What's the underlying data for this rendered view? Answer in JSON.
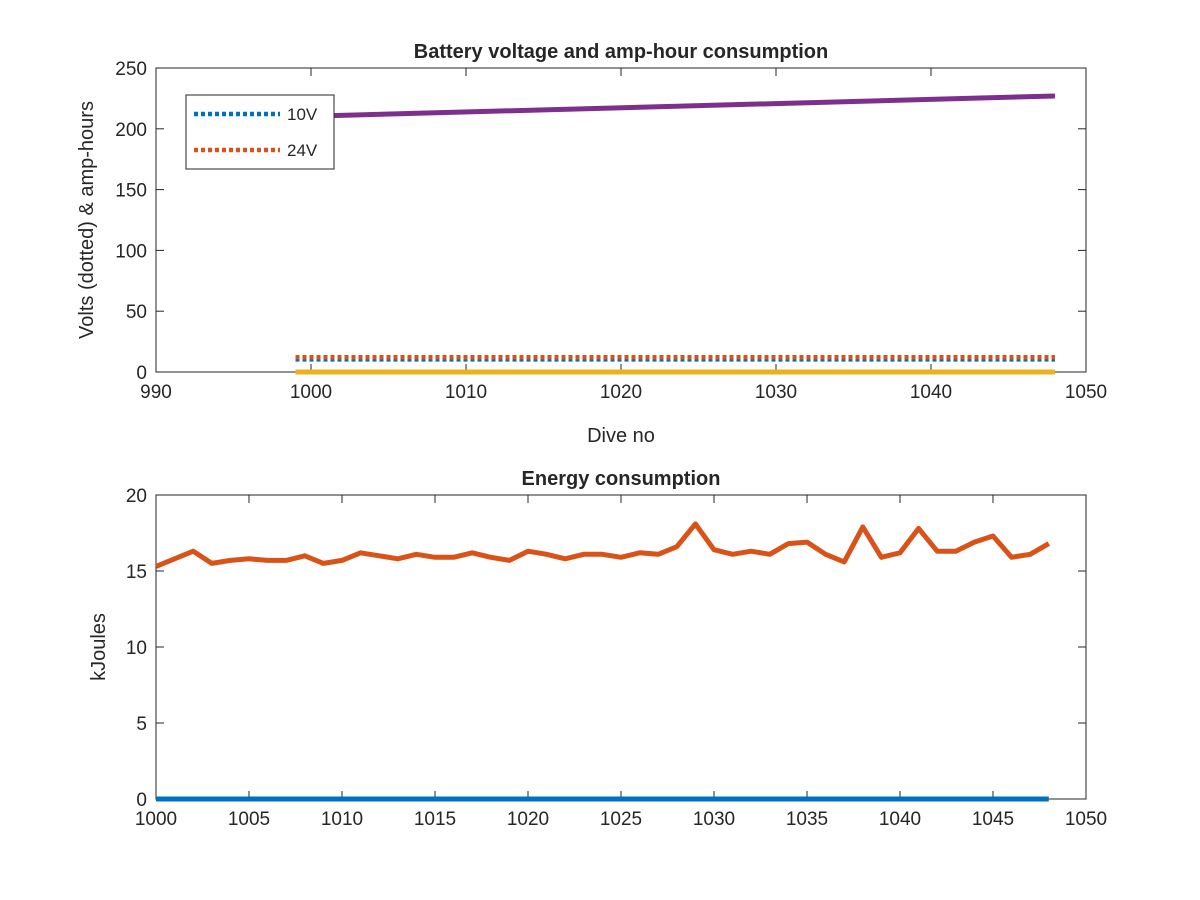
{
  "chart_data": [
    {
      "type": "line",
      "title": "Battery voltage and amp-hour consumption",
      "xlabel": "Dive no",
      "ylabel": "Volts (dotted) & amp-hours",
      "xlim": [
        990,
        1050
      ],
      "ylim": [
        0,
        250
      ],
      "xticks": [
        990,
        1000,
        1010,
        1020,
        1030,
        1040,
        1050
      ],
      "yticks": [
        0,
        50,
        100,
        150,
        200,
        250
      ],
      "grid": false,
      "legend_position": "top-left",
      "series": [
        {
          "name": "10V",
          "style": "dotted",
          "color": "#0072BD",
          "x": [
            999,
            1048
          ],
          "y": [
            10.4,
            10.4
          ],
          "in_legend": true
        },
        {
          "name": "24V",
          "style": "dotted",
          "color": "#D95319",
          "x": [
            999,
            1048
          ],
          "y": [
            12.2,
            12.2
          ],
          "in_legend": true
        },
        {
          "style": "solid",
          "color": "#EDB120",
          "x": [
            999,
            1048
          ],
          "y": [
            0,
            0
          ],
          "in_legend": false
        },
        {
          "style": "solid",
          "color": "#7E2F8E",
          "x": [
            999,
            1048
          ],
          "y": [
            210,
            227
          ],
          "in_legend": false
        }
      ]
    },
    {
      "type": "line",
      "title": "Energy consumption",
      "xlabel": "",
      "ylabel": "kJoules",
      "xlim": [
        1000,
        1050
      ],
      "ylim": [
        0,
        20
      ],
      "xticks": [
        1000,
        1005,
        1010,
        1015,
        1020,
        1025,
        1030,
        1035,
        1040,
        1045,
        1050
      ],
      "yticks": [
        0,
        5,
        10,
        15,
        20
      ],
      "grid": false,
      "series": [
        {
          "style": "solid",
          "color": "#0072BD",
          "x": [
            1000,
            1048
          ],
          "y": [
            0,
            0
          ]
        },
        {
          "style": "solid",
          "color": "#D95319",
          "x": [
            1000,
            1001,
            1002,
            1003,
            1004,
            1005,
            1006,
            1007,
            1008,
            1009,
            1010,
            1011,
            1012,
            1013,
            1014,
            1015,
            1016,
            1017,
            1018,
            1019,
            1020,
            1021,
            1022,
            1023,
            1024,
            1025,
            1026,
            1027,
            1028,
            1029,
            1030,
            1031,
            1032,
            1033,
            1034,
            1035,
            1036,
            1037,
            1038,
            1039,
            1040,
            1041,
            1042,
            1043,
            1044,
            1045,
            1046,
            1047,
            1048
          ],
          "y": [
            15.3,
            15.8,
            16.3,
            15.5,
            15.7,
            15.8,
            15.7,
            15.7,
            16.0,
            15.5,
            15.7,
            16.2,
            16.0,
            15.8,
            16.1,
            15.9,
            15.9,
            16.2,
            15.9,
            15.7,
            16.3,
            16.1,
            15.8,
            16.1,
            16.1,
            15.9,
            16.2,
            16.1,
            16.6,
            18.1,
            16.4,
            16.1,
            16.3,
            16.1,
            16.8,
            16.9,
            16.1,
            15.6,
            17.9,
            15.9,
            16.2,
            17.8,
            16.3,
            16.3,
            16.9,
            17.3,
            15.9,
            16.1,
            16.8
          ]
        }
      ]
    }
  ]
}
